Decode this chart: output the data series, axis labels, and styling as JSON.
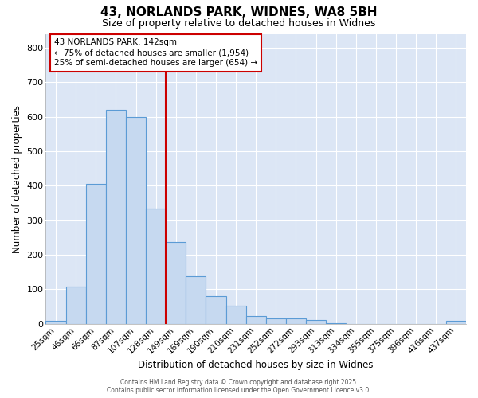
{
  "title1": "43, NORLANDS PARK, WIDNES, WA8 5BH",
  "title2": "Size of property relative to detached houses in Widnes",
  "xlabel": "Distribution of detached houses by size in Widnes",
  "ylabel": "Number of detached properties",
  "bar_labels": [
    "25sqm",
    "46sqm",
    "66sqm",
    "87sqm",
    "107sqm",
    "128sqm",
    "149sqm",
    "169sqm",
    "190sqm",
    "210sqm",
    "231sqm",
    "252sqm",
    "272sqm",
    "293sqm",
    "313sqm",
    "334sqm",
    "355sqm",
    "375sqm",
    "396sqm",
    "416sqm",
    "437sqm"
  ],
  "bar_values": [
    8,
    108,
    405,
    620,
    598,
    335,
    236,
    137,
    80,
    52,
    22,
    15,
    15,
    10,
    3,
    0,
    0,
    0,
    0,
    0,
    8
  ],
  "bar_color": "#c6d9f0",
  "bar_edge_color": "#5b9bd5",
  "vline_index": 6,
  "vline_color": "#cc0000",
  "ylim": [
    0,
    840
  ],
  "yticks": [
    0,
    100,
    200,
    300,
    400,
    500,
    600,
    700,
    800
  ],
  "annotation_text": "43 NORLANDS PARK: 142sqm\n← 75% of detached houses are smaller (1,954)\n25% of semi-detached houses are larger (654) →",
  "fig_bg_color": "#ffffff",
  "plot_bg_color": "#dce6f5",
  "grid_color": "#ffffff",
  "footer_line1": "Contains HM Land Registry data © Crown copyright and database right 2025.",
  "footer_line2": "Contains public sector information licensed under the Open Government Licence v3.0."
}
